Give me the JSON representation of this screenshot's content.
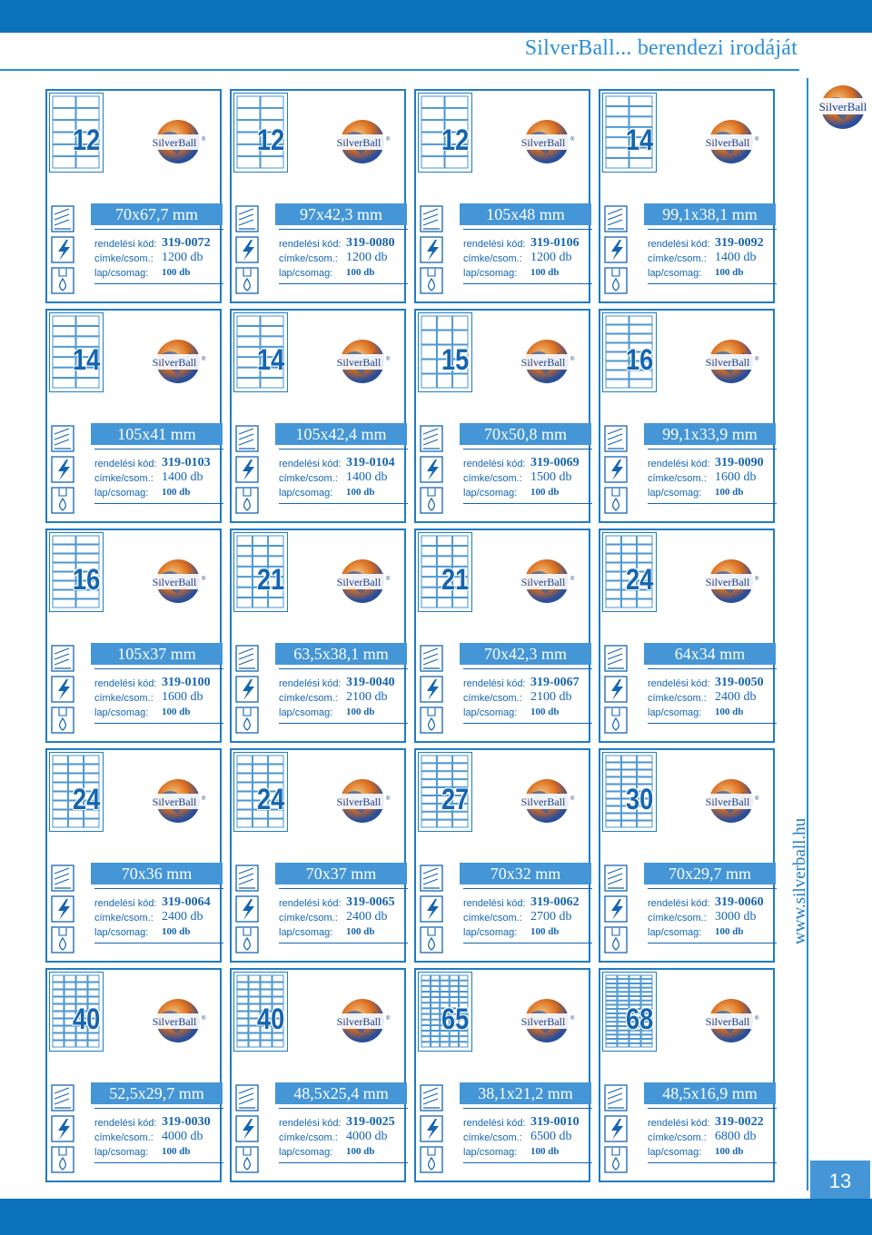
{
  "header": {
    "title": "SilverBall... berendezi irodáját"
  },
  "brand": {
    "logo_text": "SilverBall",
    "registered": "®"
  },
  "sidebar": {
    "url": "www.silverball.hu"
  },
  "page_number": "13",
  "field_labels": {
    "code": "rendelési kód:",
    "per_pack": "címke/csom.:",
    "sheets": "lap/csomag:"
  },
  "colors": {
    "primary": "#0b72bb",
    "accent": "#4596d6",
    "text": "#1565b0"
  },
  "cards": [
    {
      "count": "12",
      "size": "70x67,7 mm",
      "code": "319-0072",
      "labels": "1200 db",
      "sheets": "100 db",
      "cols": 2,
      "rows": 6
    },
    {
      "count": "12",
      "size": "97x42,3 mm",
      "code": "319-0080",
      "labels": "1200 db",
      "sheets": "100 db",
      "cols": 2,
      "rows": 6
    },
    {
      "count": "12",
      "size": "105x48 mm",
      "code": "319-0106",
      "labels": "1200 db",
      "sheets": "100 db",
      "cols": 2,
      "rows": 6
    },
    {
      "count": "14",
      "size": "99,1x38,1 mm",
      "code": "319-0092",
      "labels": "1400 db",
      "sheets": "100 db",
      "cols": 2,
      "rows": 7
    },
    {
      "count": "14",
      "size": "105x41 mm",
      "code": "319-0103",
      "labels": "1400 db",
      "sheets": "100 db",
      "cols": 2,
      "rows": 7
    },
    {
      "count": "14",
      "size": "105x42,4 mm",
      "code": "319-0104",
      "labels": "1400 db",
      "sheets": "100 db",
      "cols": 2,
      "rows": 7
    },
    {
      "count": "15",
      "size": "70x50,8 mm",
      "code": "319-0069",
      "labels": "1500 db",
      "sheets": "100 db",
      "cols": 3,
      "rows": 5
    },
    {
      "count": "16",
      "size": "99,1x33,9 mm",
      "code": "319-0090",
      "labels": "1600 db",
      "sheets": "100 db",
      "cols": 2,
      "rows": 8
    },
    {
      "count": "16",
      "size": "105x37 mm",
      "code": "319-0100",
      "labels": "1600 db",
      "sheets": "100 db",
      "cols": 2,
      "rows": 8
    },
    {
      "count": "21",
      "size": "63,5x38,1 mm",
      "code": "319-0040",
      "labels": "2100 db",
      "sheets": "100 db",
      "cols": 3,
      "rows": 7
    },
    {
      "count": "21",
      "size": "70x42,3 mm",
      "code": "319-0067",
      "labels": "2100 db",
      "sheets": "100 db",
      "cols": 3,
      "rows": 7
    },
    {
      "count": "24",
      "size": "64x34 mm",
      "code": "319-0050",
      "labels": "2400 db",
      "sheets": "100 db",
      "cols": 3,
      "rows": 8
    },
    {
      "count": "24",
      "size": "70x36 mm",
      "code": "319-0064",
      "labels": "2400 db",
      "sheets": "100 db",
      "cols": 3,
      "rows": 8
    },
    {
      "count": "24",
      "size": "70x37 mm",
      "code": "319-0065",
      "labels": "2400 db",
      "sheets": "100 db",
      "cols": 3,
      "rows": 8
    },
    {
      "count": "27",
      "size": "70x32 mm",
      "code": "319-0062",
      "labels": "2700 db",
      "sheets": "100 db",
      "cols": 3,
      "rows": 9
    },
    {
      "count": "30",
      "size": "70x29,7 mm",
      "code": "319-0060",
      "labels": "3000 db",
      "sheets": "100 db",
      "cols": 3,
      "rows": 10
    },
    {
      "count": "40",
      "size": "52,5x29,7 mm",
      "code": "319-0030",
      "labels": "4000 db",
      "sheets": "100 db",
      "cols": 4,
      "rows": 10
    },
    {
      "count": "40",
      "size": "48,5x25,4 mm",
      "code": "319-0025",
      "labels": "4000 db",
      "sheets": "100 db",
      "cols": 4,
      "rows": 10
    },
    {
      "count": "65",
      "size": "38,1x21,2 mm",
      "code": "319-0010",
      "labels": "6500 db",
      "sheets": "100 db",
      "cols": 5,
      "rows": 13
    },
    {
      "count": "68",
      "size": "48,5x16,9 mm",
      "code": "319-0022",
      "labels": "6800 db",
      "sheets": "100 db",
      "cols": 4,
      "rows": 17
    }
  ]
}
